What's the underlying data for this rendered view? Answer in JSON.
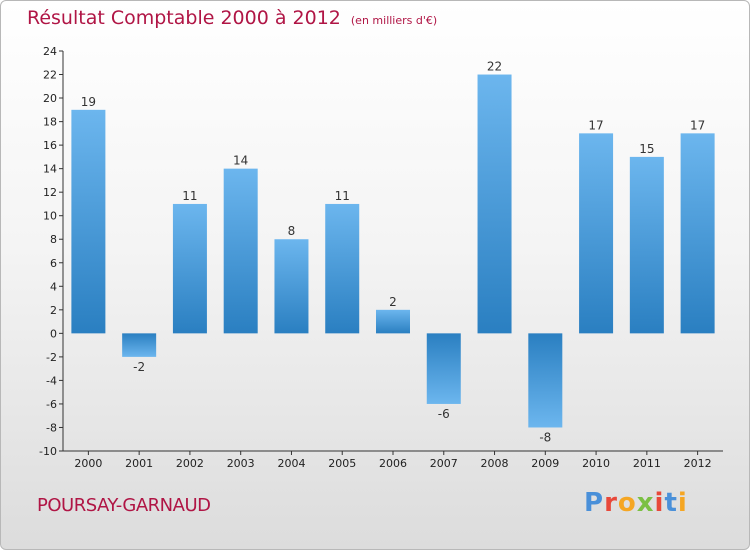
{
  "header": {
    "title": "Résultat Comptable 2000 à 2012",
    "subtitle": "(en milliers d'€)"
  },
  "footer": {
    "commune": "POURSAY-GARNAUD",
    "logo_text": "Proxiti"
  },
  "colors": {
    "accent": "#b01545",
    "bar_light": "#6cb6ee",
    "bar_dark": "#2a7fc1"
  },
  "chart_data": {
    "type": "bar",
    "title": "Résultat Comptable 2000 à 2012",
    "subtitle": "(en milliers d'€)",
    "categories": [
      "2000",
      "2001",
      "2002",
      "2003",
      "2004",
      "2005",
      "2006",
      "2007",
      "2008",
      "2009",
      "2010",
      "2011",
      "2012"
    ],
    "values": [
      19,
      -2,
      11,
      14,
      8,
      11,
      2,
      -6,
      22,
      -8,
      17,
      15,
      17
    ],
    "ylim": [
      -10,
      24
    ],
    "yticks": [
      -10,
      -8,
      -6,
      -4,
      -2,
      0,
      2,
      4,
      6,
      8,
      10,
      12,
      14,
      16,
      18,
      20,
      22,
      24
    ],
    "xlabel": "",
    "ylabel": "",
    "grid": false
  }
}
